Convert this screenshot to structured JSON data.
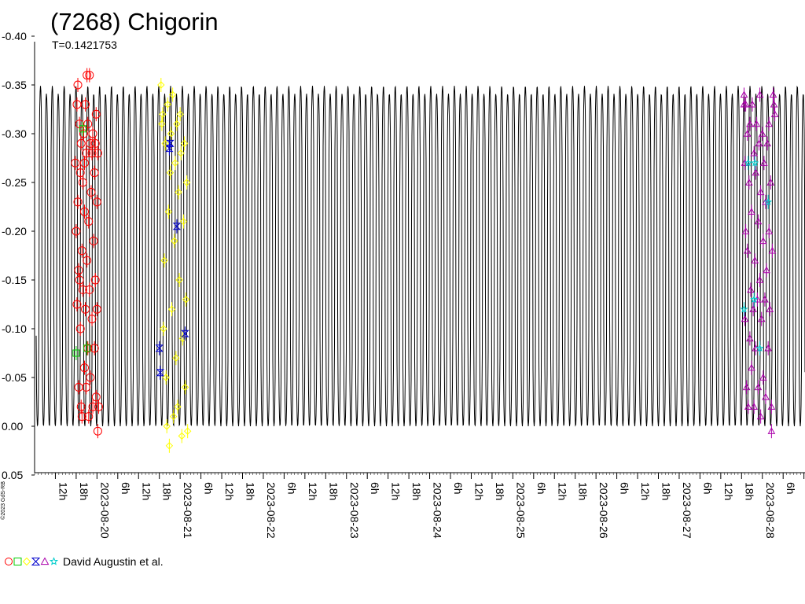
{
  "chart_data": {
    "type": "scatter",
    "title": "(7268) Chigorin",
    "subtitle": "T=0.1421753",
    "ylabel": "",
    "xlabel": "",
    "y_inverted": true,
    "ylim": [
      0.05,
      -0.4
    ],
    "xlim": [
      "2023-08-19T06:00",
      "2023-08-28T15:00"
    ],
    "y_ticks": [
      {
        "value": -0.4,
        "label": "-0.40"
      },
      {
        "value": -0.35,
        "label": "-0.35"
      },
      {
        "value": -0.3,
        "label": "-0.30"
      },
      {
        "value": -0.25,
        "label": "-0.25"
      },
      {
        "value": -0.2,
        "label": "-0.20"
      },
      {
        "value": -0.15,
        "label": "-0.15"
      },
      {
        "value": -0.1,
        "label": "-0.10"
      },
      {
        "value": -0.05,
        "label": "-0.05"
      },
      {
        "value": 0.0,
        "label": "0.00"
      },
      {
        "value": 0.05,
        "label": "0.05"
      }
    ],
    "x_ticks": [
      {
        "t": 0.25,
        "label": "12h"
      },
      {
        "t": 0.5,
        "label": "18h"
      },
      {
        "t": 0.75,
        "label": "2023-08-20"
      },
      {
        "t": 1.0,
        "label": "6h"
      },
      {
        "t": 1.25,
        "label": "12h"
      },
      {
        "t": 1.5,
        "label": "18h"
      },
      {
        "t": 1.75,
        "label": "2023-08-21"
      },
      {
        "t": 2.0,
        "label": "6h"
      },
      {
        "t": 2.25,
        "label": "12h"
      },
      {
        "t": 2.5,
        "label": "18h"
      },
      {
        "t": 2.75,
        "label": "2023-08-22"
      },
      {
        "t": 3.0,
        "label": "6h"
      },
      {
        "t": 3.25,
        "label": "12h"
      },
      {
        "t": 3.5,
        "label": "18h"
      },
      {
        "t": 3.75,
        "label": "2023-08-23"
      },
      {
        "t": 4.0,
        "label": "6h"
      },
      {
        "t": 4.25,
        "label": "12h"
      },
      {
        "t": 4.5,
        "label": "18h"
      },
      {
        "t": 4.75,
        "label": "2023-08-24"
      },
      {
        "t": 5.0,
        "label": "6h"
      },
      {
        "t": 5.25,
        "label": "12h"
      },
      {
        "t": 5.5,
        "label": "18h"
      },
      {
        "t": 5.75,
        "label": "2023-08-25"
      },
      {
        "t": 6.0,
        "label": "6h"
      },
      {
        "t": 6.25,
        "label": "12h"
      },
      {
        "t": 6.5,
        "label": "18h"
      },
      {
        "t": 6.75,
        "label": "2023-08-26"
      },
      {
        "t": 7.0,
        "label": "6h"
      },
      {
        "t": 7.25,
        "label": "12h"
      },
      {
        "t": 7.5,
        "label": "18h"
      },
      {
        "t": 7.75,
        "label": "2023-08-27"
      },
      {
        "t": 8.0,
        "label": "6h"
      },
      {
        "t": 8.25,
        "label": "12h"
      },
      {
        "t": 8.5,
        "label": "18h"
      },
      {
        "t": 8.75,
        "label": "2023-08-28"
      },
      {
        "t": 9.0,
        "label": "6h"
      },
      {
        "t": 9.25,
        "label": "12h"
      }
    ],
    "model_curve": {
      "period_days": 0.1421753,
      "min_magnitude": 0.0,
      "max_magnitude": -0.345,
      "color": "#000000"
    },
    "series": [
      {
        "symbol": "circle",
        "color": "#ff0000",
        "points": [
          [
            0.49,
            -0.27
          ],
          [
            0.5,
            -0.2
          ],
          [
            0.51,
            -0.33
          ],
          [
            0.52,
            -0.35
          ],
          [
            0.52,
            -0.23
          ],
          [
            0.53,
            -0.16
          ],
          [
            0.53,
            -0.04
          ],
          [
            0.54,
            -0.31
          ],
          [
            0.55,
            -0.26
          ],
          [
            0.55,
            -0.1
          ],
          [
            0.56,
            -0.02
          ],
          [
            0.56,
            -0.29
          ],
          [
            0.57,
            -0.18
          ],
          [
            0.57,
            -0.01
          ],
          [
            0.58,
            -0.25
          ],
          [
            0.58,
            -0.14
          ],
          [
            0.59,
            -0.3
          ],
          [
            0.6,
            -0.06
          ],
          [
            0.6,
            -0.22
          ],
          [
            0.61,
            -0.33
          ],
          [
            0.61,
            -0.12
          ],
          [
            0.62,
            -0.04
          ],
          [
            0.62,
            -0.28
          ],
          [
            0.63,
            -0.36
          ],
          [
            0.63,
            -0.17
          ],
          [
            0.64,
            -0.08
          ],
          [
            0.64,
            -0.31
          ],
          [
            0.65,
            -0.01
          ],
          [
            0.65,
            -0.21
          ],
          [
            0.66,
            -0.14
          ],
          [
            0.67,
            -0.29
          ],
          [
            0.67,
            -0.05
          ],
          [
            0.68,
            -0.24
          ],
          [
            0.69,
            -0.11
          ],
          [
            0.7,
            -0.3
          ],
          [
            0.7,
            -0.02
          ],
          [
            0.71,
            -0.19
          ],
          [
            0.72,
            -0.26
          ],
          [
            0.72,
            -0.08
          ],
          [
            0.73,
            -0.15
          ],
          [
            0.74,
            -0.32
          ],
          [
            0.74,
            -0.03
          ],
          [
            0.75,
            -0.23
          ],
          [
            0.75,
            -0.12
          ],
          [
            0.76,
            -0.28
          ],
          [
            0.76,
            0.005
          ],
          [
            0.51,
            -0.125
          ],
          [
            0.54,
            -0.15
          ],
          [
            0.6,
            -0.27
          ],
          [
            0.66,
            -0.36
          ],
          [
            0.69,
            -0.28
          ],
          [
            0.73,
            -0.29
          ],
          [
            0.77,
            -0.02
          ]
        ]
      },
      {
        "symbol": "square",
        "color": "#00cc00",
        "points": [
          [
            0.5,
            -0.075
          ],
          [
            0.58,
            -0.305
          ],
          [
            0.63,
            -0.08
          ]
        ]
      },
      {
        "symbol": "diamond",
        "color": "#ffff00",
        "points": [
          [
            1.52,
            -0.35
          ],
          [
            1.53,
            -0.31
          ],
          [
            1.54,
            -0.32
          ],
          [
            1.55,
            -0.1
          ],
          [
            1.56,
            -0.17
          ],
          [
            1.57,
            -0.29
          ],
          [
            1.58,
            -0.05
          ],
          [
            1.59,
            0.0
          ],
          [
            1.6,
            -0.33
          ],
          [
            1.61,
            -0.22
          ],
          [
            1.62,
            0.02
          ],
          [
            1.63,
            -0.26
          ],
          [
            1.64,
            -0.3
          ],
          [
            1.65,
            -0.12
          ],
          [
            1.66,
            -0.34
          ],
          [
            1.67,
            -0.01
          ],
          [
            1.68,
            -0.19
          ],
          [
            1.69,
            -0.27
          ],
          [
            1.7,
            -0.07
          ],
          [
            1.71,
            -0.31
          ],
          [
            1.72,
            -0.02
          ],
          [
            1.73,
            -0.24
          ],
          [
            1.74,
            -0.15
          ],
          [
            1.75,
            -0.32
          ],
          [
            1.76,
            -0.28
          ],
          [
            1.77,
            0.01
          ],
          [
            1.78,
            -0.09
          ],
          [
            1.79,
            -0.21
          ],
          [
            1.8,
            -0.29
          ],
          [
            1.81,
            -0.04
          ],
          [
            1.82,
            -0.13
          ],
          [
            1.83,
            -0.25
          ],
          [
            1.84,
            0.005
          ]
        ]
      },
      {
        "symbol": "hourglass",
        "color": "#0000cc",
        "points": [
          [
            1.5,
            -0.08
          ],
          [
            1.51,
            -0.055
          ],
          [
            1.62,
            -0.285
          ],
          [
            1.63,
            -0.29
          ],
          [
            1.71,
            -0.205
          ],
          [
            1.81,
            -0.095
          ]
        ]
      },
      {
        "symbol": "triangle",
        "color": "#aa00aa",
        "points": [
          [
            8.53,
            -0.34
          ],
          [
            8.54,
            -0.27
          ],
          [
            8.54,
            -0.11
          ],
          [
            8.55,
            -0.33
          ],
          [
            8.55,
            -0.2
          ],
          [
            8.56,
            -0.04
          ],
          [
            8.57,
            -0.3
          ],
          [
            8.57,
            -0.18
          ],
          [
            8.58,
            -0.02
          ],
          [
            8.59,
            -0.25
          ],
          [
            8.6,
            -0.09
          ],
          [
            8.6,
            -0.31
          ],
          [
            8.61,
            -0.14
          ],
          [
            8.62,
            -0.06
          ],
          [
            8.62,
            -0.22
          ],
          [
            8.63,
            -0.33
          ],
          [
            8.64,
            -0.12
          ],
          [
            8.65,
            -0.28
          ],
          [
            8.65,
            -0.02
          ],
          [
            8.66,
            -0.17
          ],
          [
            8.67,
            -0.26
          ],
          [
            8.67,
            -0.08
          ],
          [
            8.68,
            -0.31
          ],
          [
            8.69,
            -0.13
          ],
          [
            8.7,
            -0.21
          ],
          [
            8.7,
            -0.04
          ],
          [
            8.71,
            -0.29
          ],
          [
            8.72,
            -0.15
          ],
          [
            8.73,
            -0.24
          ],
          [
            8.73,
            -0.01
          ],
          [
            8.74,
            -0.11
          ],
          [
            8.75,
            -0.3
          ],
          [
            8.76,
            -0.19
          ],
          [
            8.76,
            -0.05
          ],
          [
            8.77,
            -0.27
          ],
          [
            8.78,
            -0.13
          ],
          [
            8.79,
            -0.23
          ],
          [
            8.79,
            -0.03
          ],
          [
            8.8,
            -0.16
          ],
          [
            8.81,
            -0.29
          ],
          [
            8.82,
            -0.08
          ],
          [
            8.83,
            -0.2
          ],
          [
            8.83,
            -0.31
          ],
          [
            8.84,
            -0.12
          ],
          [
            8.85,
            -0.25
          ],
          [
            8.86,
            -0.02
          ],
          [
            8.87,
            -0.18
          ],
          [
            8.88,
            -0.34
          ],
          [
            8.89,
            -0.33
          ],
          [
            8.9,
            -0.32
          ],
          [
            8.53,
            -0.33
          ],
          [
            8.72,
            -0.34
          ],
          [
            8.86,
            0.005
          ]
        ]
      },
      {
        "symbol": "star",
        "color": "#00cccc",
        "points": [
          [
            8.53,
            -0.12
          ],
          [
            8.58,
            -0.27
          ],
          [
            8.65,
            -0.13
          ],
          [
            8.72,
            -0.08
          ],
          [
            8.82,
            -0.23
          ],
          [
            8.66,
            -0.27
          ]
        ]
      }
    ],
    "legend": {
      "placement": "bottom-left",
      "symbols": [
        {
          "name": "circle-icon",
          "color": "#ff0000"
        },
        {
          "name": "square-icon",
          "color": "#00cc00"
        },
        {
          "name": "diamond-icon",
          "color": "#ffff00"
        },
        {
          "name": "hourglass-icon",
          "color": "#0000cc"
        },
        {
          "name": "triangle-icon",
          "color": "#aa00aa"
        },
        {
          "name": "star-icon",
          "color": "#00cccc"
        }
      ],
      "text": "David Augustin et al."
    },
    "credit": "©2023 GdS-RB",
    "grid": false
  }
}
